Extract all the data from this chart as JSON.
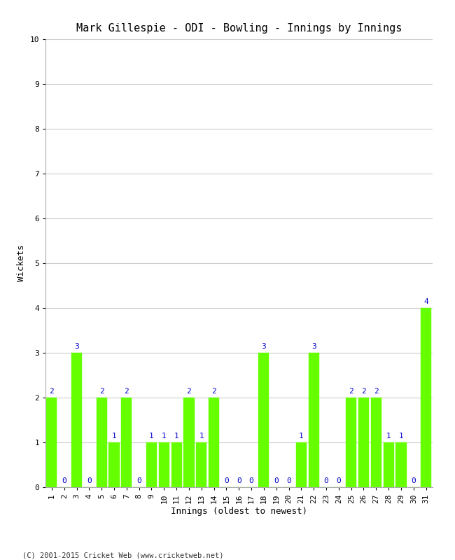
{
  "title": "Mark Gillespie - ODI - Bowling - Innings by Innings",
  "xlabel": "Innings (oldest to newest)",
  "ylabel": "Wickets",
  "innings": [
    1,
    2,
    3,
    4,
    5,
    6,
    7,
    8,
    9,
    10,
    11,
    12,
    13,
    14,
    15,
    16,
    17,
    18,
    19,
    20,
    21,
    22,
    23,
    24,
    25,
    26,
    27,
    28,
    29,
    30,
    31
  ],
  "wickets": [
    2,
    0,
    3,
    0,
    2,
    1,
    2,
    0,
    1,
    1,
    1,
    2,
    1,
    2,
    0,
    0,
    0,
    3,
    0,
    0,
    1,
    3,
    0,
    0,
    2,
    2,
    2,
    1,
    1,
    0,
    4
  ],
  "bar_color": "#66ff00",
  "bar_edge_color": "#66ff00",
  "label_color": "#0000cc",
  "background_color": "#ffffff",
  "grid_color": "#cccccc",
  "title_color": "#000000",
  "axis_label_color": "#000000",
  "tick_label_color": "#000000",
  "ylim": [
    0,
    10
  ],
  "yticks": [
    0,
    1,
    2,
    3,
    4,
    5,
    6,
    7,
    8,
    9,
    10
  ],
  "copyright": "(C) 2001-2015 Cricket Web (www.cricketweb.net)",
  "title_fontsize": 11,
  "label_fontsize": 9,
  "tick_fontsize": 8,
  "bar_label_fontsize": 8
}
